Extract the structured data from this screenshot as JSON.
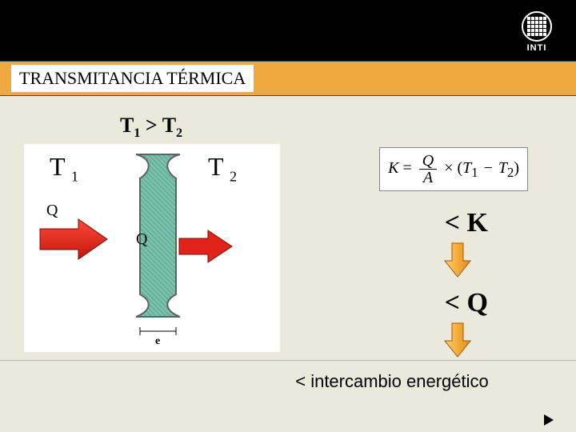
{
  "header": {
    "logo_text": "INTI",
    "title": "TRANSMITANCIA TÉRMICA"
  },
  "diagram": {
    "inequality_html": "T<sub>1</sub> > T<sub>2</sub>",
    "t1_label_html": "T <span class='tsub'>1</span>",
    "t2_label_html": "T <span class='tsub'>2</span>",
    "q_labels": {
      "a": "Q",
      "b": "Q",
      "c": "Q"
    },
    "thickness_label": "e",
    "wall_fill": "#79c1ad",
    "wall_hatch": "#5aa48e",
    "wall_outline": "#606060",
    "arrow_fill": "#e2231a",
    "arrow_stroke": "#8a0e08"
  },
  "formula": {
    "K": "K",
    "eq": "=",
    "Q": "Q",
    "A": "A",
    "times": "×",
    "lpar": "(",
    "T1": "T",
    "sub1": "1",
    "minus": "−",
    "T2": "T",
    "sub2": "2",
    "rpar": ")"
  },
  "implications": {
    "lt_k": "< K",
    "lt_q": "< Q",
    "arrow_fill": "#f6a428",
    "arrow_stroke": "#b46a0a"
  },
  "footer": {
    "text": "< intercambio energético"
  }
}
